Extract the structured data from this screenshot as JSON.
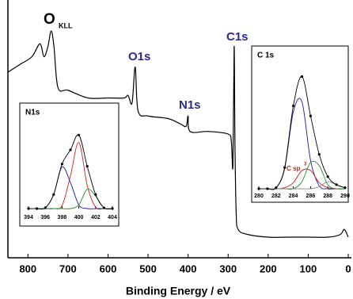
{
  "chart_data": [
    {
      "type": "line",
      "x_label": "Binding Energy / eV",
      "annotations": [
        "O",
        "KLL",
        "O1s",
        "N1s",
        "C1s"
      ],
      "xlim": [
        850,
        0
      ],
      "xticks": [
        800,
        700,
        600,
        500,
        400,
        300,
        200,
        100,
        0
      ],
      "ylim": [
        0,
        100
      ],
      "x": [
        850,
        820,
        790,
        770,
        760,
        750,
        742,
        735,
        725,
        700,
        650,
        600,
        560,
        550,
        540,
        532,
        525,
        500,
        450,
        420,
        405,
        400,
        395,
        350,
        300,
        292,
        288,
        285,
        283,
        280,
        275,
        250,
        200,
        150,
        100,
        50,
        20,
        10,
        0
      ],
      "series": [
        {
          "color": "#000000",
          "values": [
            72,
            75,
            78,
            83,
            78,
            82,
            88,
            82,
            66,
            65,
            62,
            62,
            62,
            63,
            60,
            74,
            57,
            55,
            54,
            52,
            51,
            55,
            49,
            49,
            48,
            45,
            36,
            82,
            45,
            18,
            11,
            9,
            8,
            8,
            8,
            8,
            9,
            11,
            8
          ]
        }
      ]
    },
    {
      "type": "line",
      "title": "N1s",
      "xlim": [
        394,
        404
      ],
      "xticks": [
        394,
        396,
        398,
        400,
        402,
        404
      ],
      "ylim": [
        0,
        110
      ],
      "x": [
        394,
        395,
        396,
        397,
        398,
        399,
        400,
        401,
        402,
        403,
        404
      ],
      "series": [
        {
          "color": "#1a1a9e",
          "values": [
            0,
            0,
            1,
            19,
            56,
            35,
            5,
            0,
            0,
            0,
            0
          ]
        },
        {
          "color": "#d42020",
          "values": [
            0,
            0,
            0,
            0,
            4,
            44,
            89,
            31,
            2,
            0,
            0
          ]
        },
        {
          "color": "#1f8a2a",
          "values": [
            0,
            0,
            0,
            0,
            0,
            0,
            5,
            26,
            17,
            1,
            0
          ]
        },
        {
          "color": "#000000",
          "marker": true,
          "values": [
            0,
            0,
            1,
            19,
            60,
            79,
            99,
            57,
            19,
            1,
            0
          ]
        }
      ]
    },
    {
      "type": "line",
      "title": "C 1s",
      "annotations": [
        "C sp",
        "3"
      ],
      "xlim": [
        280,
        290
      ],
      "xticks": [
        280,
        282,
        284,
        286,
        288,
        290
      ],
      "ylim": [
        0,
        120
      ],
      "x": [
        280,
        281,
        282,
        283,
        284,
        285,
        286,
        287,
        288,
        289,
        290
      ],
      "series": [
        {
          "color": "#1a1a9e",
          "values": [
            0,
            0,
            1,
            20,
            76,
            86,
            28,
            3,
            0,
            0,
            0
          ]
        },
        {
          "color": "#d42020",
          "values": [
            0,
            0,
            0,
            1,
            6,
            18,
            18,
            6,
            1,
            0,
            0
          ]
        },
        {
          "color": "#1f8a2a",
          "values": [
            0,
            0,
            0,
            0,
            0,
            7,
            26,
            23,
            4,
            0,
            0
          ]
        },
        {
          "color": "#888888",
          "values": [
            0,
            0,
            0,
            0,
            0,
            0,
            0,
            2,
            7,
            4,
            1
          ]
        },
        {
          "color": "#000000",
          "marker": true,
          "values": [
            0,
            0,
            1,
            21,
            82,
            111,
            72,
            34,
            12,
            4,
            1
          ]
        }
      ]
    }
  ]
}
